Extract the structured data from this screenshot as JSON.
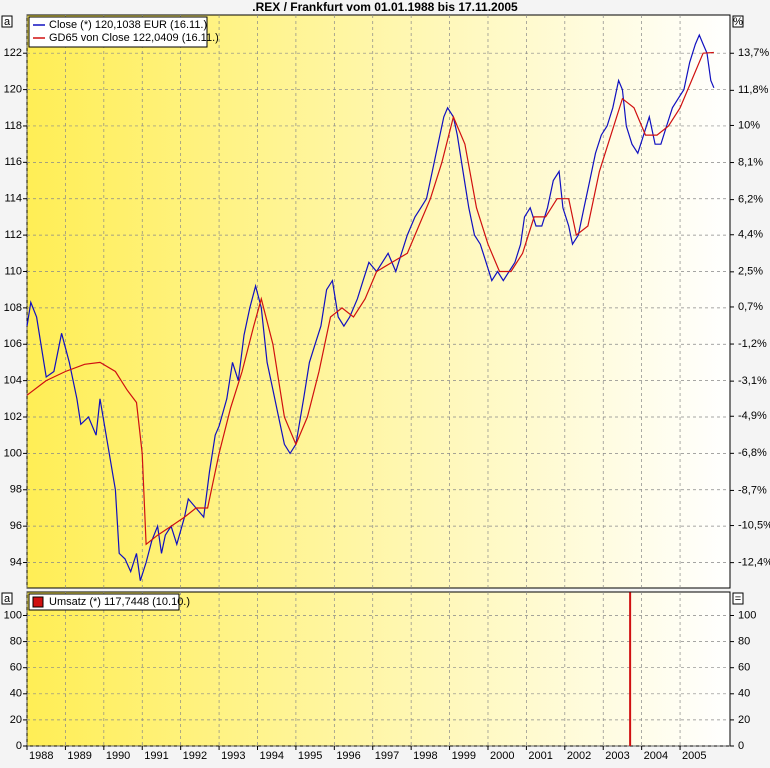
{
  "chart_data": [
    {
      "type": "line",
      "title": ".REX / Frankfurt vom 01.01.1988 bis 17.11.2005",
      "y_unit": "a",
      "y2_unit": "%",
      "xlim": [
        1988,
        2006.3
      ],
      "xticks": [
        1988,
        1989,
        1990,
        1991,
        1992,
        1993,
        1994,
        1995,
        1996,
        1997,
        1998,
        1999,
        2000,
        2001,
        2002,
        2003,
        2004,
        2005
      ],
      "ylim": [
        92.6,
        124.1
      ],
      "yticks": [
        94,
        96,
        98,
        100,
        102,
        104,
        106,
        108,
        110,
        112,
        114,
        116,
        118,
        120,
        122
      ],
      "y2lim": [
        -13.7,
        15.66
      ],
      "y2ticks": [
        {
          "value": 13.7,
          "label": "13,7%"
        },
        {
          "value": 11.8,
          "label": "11,8%"
        },
        {
          "value": 10,
          "label": "10%"
        },
        {
          "value": 8.1,
          "label": "8,1%"
        },
        {
          "value": 6.2,
          "label": "6,2%"
        },
        {
          "value": 4.4,
          "label": "4,4%"
        },
        {
          "value": 2.5,
          "label": "2,5%"
        },
        {
          "value": 0.7,
          "label": "0,7%"
        },
        {
          "value": -1.2,
          "label": "-1,2%"
        },
        {
          "value": -3.1,
          "label": "-3,1%"
        },
        {
          "value": -4.9,
          "label": "-4,9%"
        },
        {
          "value": -6.8,
          "label": "-6,8%"
        },
        {
          "value": -8.7,
          "label": "-8,7%"
        },
        {
          "value": -10.5,
          "label": "-10,5%"
        },
        {
          "value": -12.4,
          "label": "-12,4%"
        }
      ],
      "grid": true,
      "legend": "upper left",
      "series": [
        {
          "name": "Close (*) 120,1038 EUR (16.11.)",
          "color": "#1010c0",
          "x": [
            1988.0,
            1988.1,
            1988.25,
            1988.4,
            1988.5,
            1988.7,
            1988.9,
            1989.1,
            1989.3,
            1989.4,
            1989.6,
            1989.8,
            1989.9,
            1990.1,
            1990.3,
            1990.4,
            1990.55,
            1990.7,
            1990.85,
            1990.95,
            1991.1,
            1991.25,
            1991.4,
            1991.5,
            1991.6,
            1991.75,
            1991.9,
            1992.1,
            1992.2,
            1992.4,
            1992.6,
            1992.75,
            1992.9,
            1993.0,
            1993.2,
            1993.35,
            1993.5,
            1993.65,
            1993.8,
            1993.95,
            1994.1,
            1994.25,
            1994.4,
            1994.55,
            1994.7,
            1994.85,
            1995.0,
            1995.2,
            1995.35,
            1995.5,
            1995.65,
            1995.8,
            1995.95,
            1996.1,
            1996.25,
            1996.4,
            1996.6,
            1996.75,
            1996.9,
            1997.1,
            1997.25,
            1997.4,
            1997.6,
            1997.75,
            1997.9,
            1998.1,
            1998.25,
            1998.4,
            1998.55,
            1998.7,
            1998.85,
            1998.95,
            1999.1,
            1999.2,
            1999.35,
            1999.5,
            1999.65,
            1999.8,
            1999.95,
            2000.1,
            2000.25,
            2000.4,
            2000.55,
            2000.7,
            2000.85,
            2000.95,
            2001.1,
            2001.25,
            2001.4,
            2001.55,
            2001.7,
            2001.85,
            2001.95,
            2002.1,
            2002.2,
            2002.35,
            2002.5,
            2002.65,
            2002.8,
            2002.95,
            2003.1,
            2003.25,
            2003.4,
            2003.5,
            2003.6,
            2003.75,
            2003.9,
            2004.05,
            2004.2,
            2004.35,
            2004.5,
            2004.65,
            2004.8,
            2004.95,
            2005.1,
            2005.25,
            2005.4,
            2005.5,
            2005.6,
            2005.7,
            2005.8,
            2005.88
          ],
          "values": [
            107,
            108.3,
            107.5,
            105.5,
            104.2,
            104.5,
            106.6,
            105,
            103,
            101.6,
            102,
            101,
            103,
            100.5,
            98,
            94.5,
            94.2,
            93.5,
            94.5,
            93,
            94,
            95.2,
            96,
            94.5,
            95.5,
            96,
            95,
            96.5,
            97.5,
            97,
            96.5,
            99,
            101,
            101.5,
            103,
            105,
            104,
            106.5,
            108,
            109.2,
            108,
            105,
            103.5,
            102,
            100.5,
            100,
            100.5,
            103,
            105,
            106,
            107,
            109,
            109.5,
            107.5,
            107,
            107.5,
            108.5,
            109.5,
            110.5,
            110,
            110.5,
            111,
            110,
            111,
            112,
            113,
            113.5,
            114,
            115.5,
            117,
            118.5,
            119,
            118.5,
            117.5,
            115.5,
            113.5,
            112,
            111.5,
            110.5,
            109.5,
            110,
            109.5,
            110,
            110.5,
            111.5,
            113,
            113.5,
            112.5,
            112.5,
            113.5,
            115,
            115.5,
            113.5,
            112.5,
            111.5,
            112,
            113.5,
            115,
            116.5,
            117.5,
            118,
            119,
            120.5,
            120,
            118,
            117,
            116.5,
            117.5,
            118.5,
            117,
            117,
            118,
            119,
            119.5,
            120,
            121.5,
            122.5,
            123,
            122.5,
            122,
            120.5,
            120.1
          ]
        },
        {
          "name": "GD65 von Close 122,0409 (16.11.)",
          "color": "#d01010",
          "x": [
            1988.0,
            1988.5,
            1989.0,
            1989.5,
            1989.9,
            1990.3,
            1990.6,
            1990.85,
            1991.0,
            1991.1,
            1991.4,
            1991.75,
            1992.1,
            1992.4,
            1992.7,
            1993.0,
            1993.3,
            1993.6,
            1993.9,
            1994.1,
            1994.4,
            1994.7,
            1995.0,
            1995.3,
            1995.6,
            1995.9,
            1996.2,
            1996.5,
            1996.8,
            1997.1,
            1997.5,
            1997.9,
            1998.2,
            1998.5,
            1998.8,
            1999.1,
            1999.4,
            1999.7,
            2000.0,
            2000.3,
            2000.6,
            2000.9,
            2001.2,
            2001.5,
            2001.8,
            2002.1,
            2002.3,
            2002.6,
            2002.9,
            2003.2,
            2003.5,
            2003.8,
            2004.1,
            2004.4,
            2004.7,
            2005.0,
            2005.3,
            2005.6,
            2005.88
          ],
          "values": [
            103.2,
            104,
            104.5,
            104.9,
            105,
            104.5,
            103.5,
            102.8,
            100,
            95,
            95.5,
            96,
            96.5,
            97,
            97,
            100,
            102.5,
            104.5,
            107,
            108.5,
            106,
            102,
            100.5,
            102,
            104.5,
            107.5,
            108,
            107.5,
            108.5,
            110,
            110.5,
            111,
            112.5,
            114,
            116,
            118.5,
            117,
            113.5,
            111.5,
            110,
            110,
            111,
            113,
            113,
            114,
            114,
            112,
            112.5,
            115.5,
            117.5,
            119.5,
            119,
            117.5,
            117.5,
            118,
            119,
            120.5,
            122,
            122.04
          ]
        }
      ]
    },
    {
      "type": "bar",
      "y_unit": "a",
      "y2_unit": "=",
      "ylim": [
        0,
        118
      ],
      "yticks": [
        0,
        20,
        40,
        60,
        80,
        100
      ],
      "y2lim": [
        0,
        118
      ],
      "y2ticks": [
        0,
        20,
        40,
        60,
        80,
        100
      ],
      "grid": true,
      "legend": "upper left",
      "series": [
        {
          "name": "Umsatz (*) 117,7448 (10.10.)",
          "color": "#d01010",
          "x": [
            2003.7
          ],
          "values": [
            117.7448
          ]
        }
      ]
    }
  ]
}
